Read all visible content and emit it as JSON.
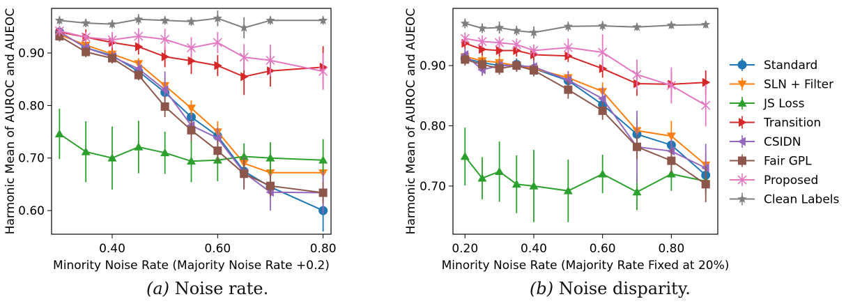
{
  "captions": {
    "a_letter": "(a)",
    "a_text": "Noise rate.",
    "b_letter": "(b)",
    "b_text": "Noise disparity."
  },
  "legend": [
    {
      "name": "Standard",
      "color": "#1f77b4",
      "marker": "circle"
    },
    {
      "name": "SLN + Filter",
      "color": "#ff7f0e",
      "marker": "triangle-down"
    },
    {
      "name": "JS Loss",
      "color": "#2ca02c",
      "marker": "triangle-up"
    },
    {
      "name": "Transition",
      "color": "#d62728",
      "marker": "triangle-right"
    },
    {
      "name": "CSIDN",
      "color": "#9467bd",
      "marker": "triangle-left"
    },
    {
      "name": "Fair GPL",
      "color": "#8c564b",
      "marker": "square"
    },
    {
      "name": "Proposed",
      "color": "#e377c2",
      "marker": "x"
    },
    {
      "name": "Clean Labels",
      "color": "#7f7f7f",
      "marker": "star"
    }
  ],
  "chart_data": [
    {
      "type": "line",
      "xlabel": "Minority Noise Rate (Majority Noise Rate +0.2)",
      "ylabel": "Harmonic Mean of AUROC and AUEOC",
      "xlim": [
        0.285,
        0.815
      ],
      "ylim": [
        0.555,
        0.985
      ],
      "xticks": [
        0.4,
        0.6,
        0.8
      ],
      "xtick_labels": [
        "0.40",
        "0.60",
        "0.80"
      ],
      "yticks": [
        0.6,
        0.7,
        0.8,
        0.9
      ],
      "ytick_labels": [
        "0.60",
        "0.70",
        "0.80",
        "0.90"
      ],
      "x": [
        0.3,
        0.35,
        0.4,
        0.45,
        0.5,
        0.55,
        0.6,
        0.65,
        0.7,
        0.8
      ],
      "series": [
        {
          "name": "Standard",
          "values": [
            0.94,
            0.91,
            0.895,
            0.865,
            0.825,
            0.778,
            0.742,
            0.675,
            0.645,
            0.6
          ],
          "err": [
            0.01,
            0.01,
            0.01,
            0.01,
            0.015,
            0.015,
            0.015,
            0.03,
            0.02,
            0.04
          ]
        },
        {
          "name": "SLN + Filter",
          "values": [
            0.935,
            0.915,
            0.898,
            0.88,
            0.838,
            0.795,
            0.75,
            0.69,
            0.672,
            0.672
          ],
          "err": [
            0.01,
            0.01,
            0.01,
            0.01,
            0.015,
            0.015,
            0.02,
            0.02,
            0.02,
            0.02
          ]
        },
        {
          "name": "JS Loss",
          "values": [
            0.746,
            0.712,
            0.7,
            0.721,
            0.71,
            0.694,
            0.696,
            0.703,
            0.7,
            0.696
          ],
          "err": [
            0.048,
            0.058,
            0.06,
            0.05,
            0.04,
            0.04,
            0.04,
            0.025,
            0.03,
            0.04
          ]
        },
        {
          "name": "Transition",
          "values": [
            0.94,
            0.93,
            0.92,
            0.912,
            0.893,
            0.885,
            0.876,
            0.855,
            0.866,
            0.873
          ],
          "err": [
            0.01,
            0.015,
            0.015,
            0.015,
            0.02,
            0.025,
            0.02,
            0.035,
            0.03,
            0.04
          ]
        },
        {
          "name": "CSIDN",
          "values": [
            0.94,
            0.91,
            0.893,
            0.87,
            0.83,
            0.762,
            0.738,
            0.672,
            0.635,
            0.634
          ],
          "err": [
            0.01,
            0.01,
            0.01,
            0.015,
            0.035,
            0.02,
            0.02,
            0.03,
            0.035,
            0.04
          ]
        },
        {
          "name": "Fair GPL",
          "values": [
            0.932,
            0.902,
            0.89,
            0.858,
            0.798,
            0.753,
            0.714,
            0.67,
            0.647,
            0.634
          ],
          "err": [
            0.01,
            0.01,
            0.01,
            0.01,
            0.02,
            0.02,
            0.02,
            0.03,
            0.02,
            0.02
          ]
        },
        {
          "name": "Proposed",
          "values": [
            0.942,
            0.93,
            0.925,
            0.932,
            0.926,
            0.91,
            0.92,
            0.892,
            0.886,
            0.865
          ],
          "err": [
            0.01,
            0.01,
            0.015,
            0.015,
            0.02,
            0.02,
            0.02,
            0.025,
            0.03,
            0.035
          ]
        },
        {
          "name": "Clean Labels",
          "values": [
            0.962,
            0.957,
            0.955,
            0.964,
            0.962,
            0.96,
            0.966,
            0.948,
            0.962,
            0.962
          ],
          "err": [
            0.008,
            0.008,
            0.008,
            0.01,
            0.008,
            0.008,
            0.015,
            0.02,
            0.008,
            0.008
          ]
        }
      ]
    },
    {
      "type": "line",
      "xlabel": "Minority Noise Rate (Majority Rate Fixed at 20%)",
      "ylabel": "Harmonic Mean of AUROC and AUEOC",
      "xlim": [
        0.165,
        0.935
      ],
      "ylim": [
        0.62,
        0.995
      ],
      "xticks": [
        0.2,
        0.4,
        0.6,
        0.8
      ],
      "xtick_labels": [
        "0.20",
        "0.40",
        "0.60",
        "0.80"
      ],
      "yticks": [
        0.7,
        0.8,
        0.9
      ],
      "ytick_labels": [
        "0.70",
        "0.80",
        "0.90"
      ],
      "x": [
        0.2,
        0.25,
        0.3,
        0.35,
        0.4,
        0.5,
        0.6,
        0.7,
        0.8,
        0.9
      ],
      "series": [
        {
          "name": "Standard",
          "values": [
            0.912,
            0.905,
            0.9,
            0.902,
            0.895,
            0.875,
            0.835,
            0.786,
            0.768,
            0.718
          ],
          "err": [
            0.01,
            0.01,
            0.01,
            0.01,
            0.01,
            0.01,
            0.015,
            0.02,
            0.015,
            0.02
          ]
        },
        {
          "name": "SLN + Filter",
          "values": [
            0.915,
            0.908,
            0.905,
            0.9,
            0.895,
            0.88,
            0.857,
            0.792,
            0.783,
            0.735
          ],
          "err": [
            0.01,
            0.01,
            0.01,
            0.01,
            0.01,
            0.01,
            0.015,
            0.02,
            0.025,
            0.02
          ]
        },
        {
          "name": "JS Loss",
          "values": [
            0.749,
            0.713,
            0.724,
            0.703,
            0.7,
            0.692,
            0.72,
            0.69,
            0.72,
            0.708
          ],
          "err": [
            0.048,
            0.035,
            0.05,
            0.048,
            0.06,
            0.052,
            0.032,
            0.03,
            0.028,
            0.02
          ]
        },
        {
          "name": "Transition",
          "values": [
            0.937,
            0.927,
            0.925,
            0.925,
            0.918,
            0.916,
            0.895,
            0.87,
            0.869,
            0.872
          ],
          "err": [
            0.01,
            0.01,
            0.01,
            0.01,
            0.01,
            0.01,
            0.015,
            0.02,
            0.02,
            0.02
          ]
        },
        {
          "name": "CSIDN",
          "values": [
            0.918,
            0.893,
            0.9,
            0.9,
            0.898,
            0.876,
            0.845,
            0.765,
            0.758,
            0.73
          ],
          "err": [
            0.01,
            0.01,
            0.01,
            0.01,
            0.01,
            0.015,
            0.02,
            0.06,
            0.02,
            0.04
          ]
        },
        {
          "name": "Fair GPL",
          "values": [
            0.91,
            0.902,
            0.895,
            0.9,
            0.892,
            0.86,
            0.825,
            0.765,
            0.742,
            0.703
          ],
          "err": [
            0.01,
            0.01,
            0.01,
            0.01,
            0.01,
            0.015,
            0.015,
            0.02,
            0.02,
            0.03
          ]
        },
        {
          "name": "Proposed",
          "values": [
            0.945,
            0.94,
            0.938,
            0.935,
            0.925,
            0.93,
            0.922,
            0.885,
            0.867,
            0.834
          ],
          "err": [
            0.01,
            0.01,
            0.01,
            0.01,
            0.01,
            0.015,
            0.03,
            0.025,
            0.03,
            0.035
          ]
        },
        {
          "name": "Clean Labels",
          "values": [
            0.97,
            0.962,
            0.963,
            0.958,
            0.955,
            0.965,
            0.966,
            0.964,
            0.967,
            0.968
          ],
          "err": [
            0.008,
            0.008,
            0.01,
            0.008,
            0.01,
            0.008,
            0.008,
            0.006,
            0.006,
            0.006
          ]
        }
      ]
    }
  ]
}
